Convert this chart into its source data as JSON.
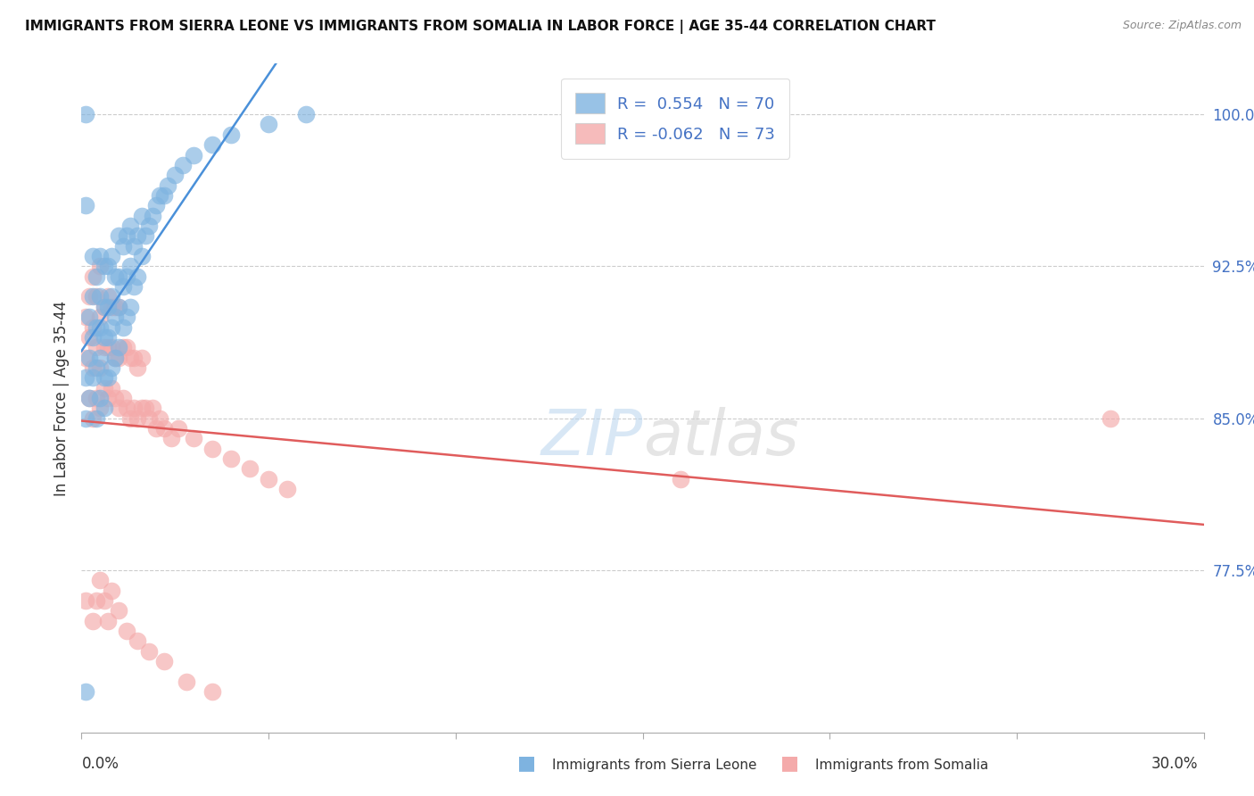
{
  "title": "IMMIGRANTS FROM SIERRA LEONE VS IMMIGRANTS FROM SOMALIA IN LABOR FORCE | AGE 35-44 CORRELATION CHART",
  "source": "Source: ZipAtlas.com",
  "ylabel": "In Labor Force | Age 35-44",
  "ylabel_ticks": [
    "100.0%",
    "92.5%",
    "85.0%",
    "77.5%"
  ],
  "ylabel_tick_values": [
    1.0,
    0.925,
    0.85,
    0.775
  ],
  "xmin": 0.0,
  "xmax": 0.3,
  "ymin": 0.695,
  "ymax": 1.025,
  "sierra_leone_color": "#7EB3E0",
  "somalia_color": "#F4AAAA",
  "sierra_leone_line_color": "#4A90D9",
  "somalia_line_color": "#E05C5C",
  "sierra_leone_R": 0.554,
  "sierra_leone_N": 70,
  "somalia_R": -0.062,
  "somalia_N": 73,
  "legend_label_1": "Immigrants from Sierra Leone",
  "legend_label_2": "Immigrants from Somalia",
  "watermark": "ZIPatlas",
  "grid_color": "#CCCCCC",
  "sierra_leone_x": [
    0.001,
    0.001,
    0.001,
    0.002,
    0.002,
    0.002,
    0.003,
    0.003,
    0.003,
    0.003,
    0.004,
    0.004,
    0.004,
    0.004,
    0.005,
    0.005,
    0.005,
    0.005,
    0.005,
    0.006,
    0.006,
    0.006,
    0.006,
    0.006,
    0.007,
    0.007,
    0.007,
    0.007,
    0.008,
    0.008,
    0.008,
    0.008,
    0.009,
    0.009,
    0.009,
    0.01,
    0.01,
    0.01,
    0.01,
    0.011,
    0.011,
    0.011,
    0.012,
    0.012,
    0.012,
    0.013,
    0.013,
    0.013,
    0.014,
    0.014,
    0.015,
    0.015,
    0.016,
    0.016,
    0.017,
    0.018,
    0.019,
    0.02,
    0.021,
    0.022,
    0.023,
    0.025,
    0.027,
    0.03,
    0.035,
    0.04,
    0.05,
    0.06,
    0.001,
    0.001
  ],
  "sierra_leone_y": [
    0.715,
    0.85,
    0.87,
    0.86,
    0.88,
    0.9,
    0.87,
    0.89,
    0.91,
    0.93,
    0.85,
    0.875,
    0.895,
    0.92,
    0.86,
    0.88,
    0.895,
    0.91,
    0.93,
    0.855,
    0.87,
    0.89,
    0.905,
    0.925,
    0.87,
    0.89,
    0.905,
    0.925,
    0.875,
    0.895,
    0.91,
    0.93,
    0.88,
    0.9,
    0.92,
    0.885,
    0.905,
    0.92,
    0.94,
    0.895,
    0.915,
    0.935,
    0.9,
    0.92,
    0.94,
    0.905,
    0.925,
    0.945,
    0.915,
    0.935,
    0.92,
    0.94,
    0.93,
    0.95,
    0.94,
    0.945,
    0.95,
    0.955,
    0.96,
    0.96,
    0.965,
    0.97,
    0.975,
    0.98,
    0.985,
    0.99,
    0.995,
    1.0,
    0.955,
    1.0
  ],
  "somalia_x": [
    0.001,
    0.001,
    0.002,
    0.002,
    0.002,
    0.003,
    0.003,
    0.003,
    0.003,
    0.004,
    0.004,
    0.004,
    0.005,
    0.005,
    0.005,
    0.005,
    0.006,
    0.006,
    0.006,
    0.007,
    0.007,
    0.007,
    0.008,
    0.008,
    0.008,
    0.009,
    0.009,
    0.009,
    0.01,
    0.01,
    0.01,
    0.011,
    0.011,
    0.012,
    0.012,
    0.013,
    0.013,
    0.014,
    0.014,
    0.015,
    0.015,
    0.016,
    0.016,
    0.017,
    0.018,
    0.019,
    0.02,
    0.021,
    0.022,
    0.024,
    0.026,
    0.03,
    0.035,
    0.04,
    0.045,
    0.05,
    0.055,
    0.003,
    0.004,
    0.005,
    0.006,
    0.007,
    0.008,
    0.01,
    0.012,
    0.015,
    0.018,
    0.022,
    0.028,
    0.035,
    0.16,
    0.275,
    0.001
  ],
  "somalia_y": [
    0.88,
    0.9,
    0.86,
    0.89,
    0.91,
    0.85,
    0.875,
    0.895,
    0.92,
    0.86,
    0.885,
    0.91,
    0.855,
    0.875,
    0.9,
    0.925,
    0.865,
    0.885,
    0.905,
    0.86,
    0.885,
    0.91,
    0.865,
    0.885,
    0.905,
    0.86,
    0.88,
    0.905,
    0.855,
    0.88,
    0.905,
    0.86,
    0.885,
    0.855,
    0.885,
    0.85,
    0.88,
    0.855,
    0.88,
    0.85,
    0.875,
    0.855,
    0.88,
    0.855,
    0.85,
    0.855,
    0.845,
    0.85,
    0.845,
    0.84,
    0.845,
    0.84,
    0.835,
    0.83,
    0.825,
    0.82,
    0.815,
    0.75,
    0.76,
    0.77,
    0.76,
    0.75,
    0.765,
    0.755,
    0.745,
    0.74,
    0.735,
    0.73,
    0.72,
    0.715,
    0.82,
    0.85,
    0.76
  ]
}
